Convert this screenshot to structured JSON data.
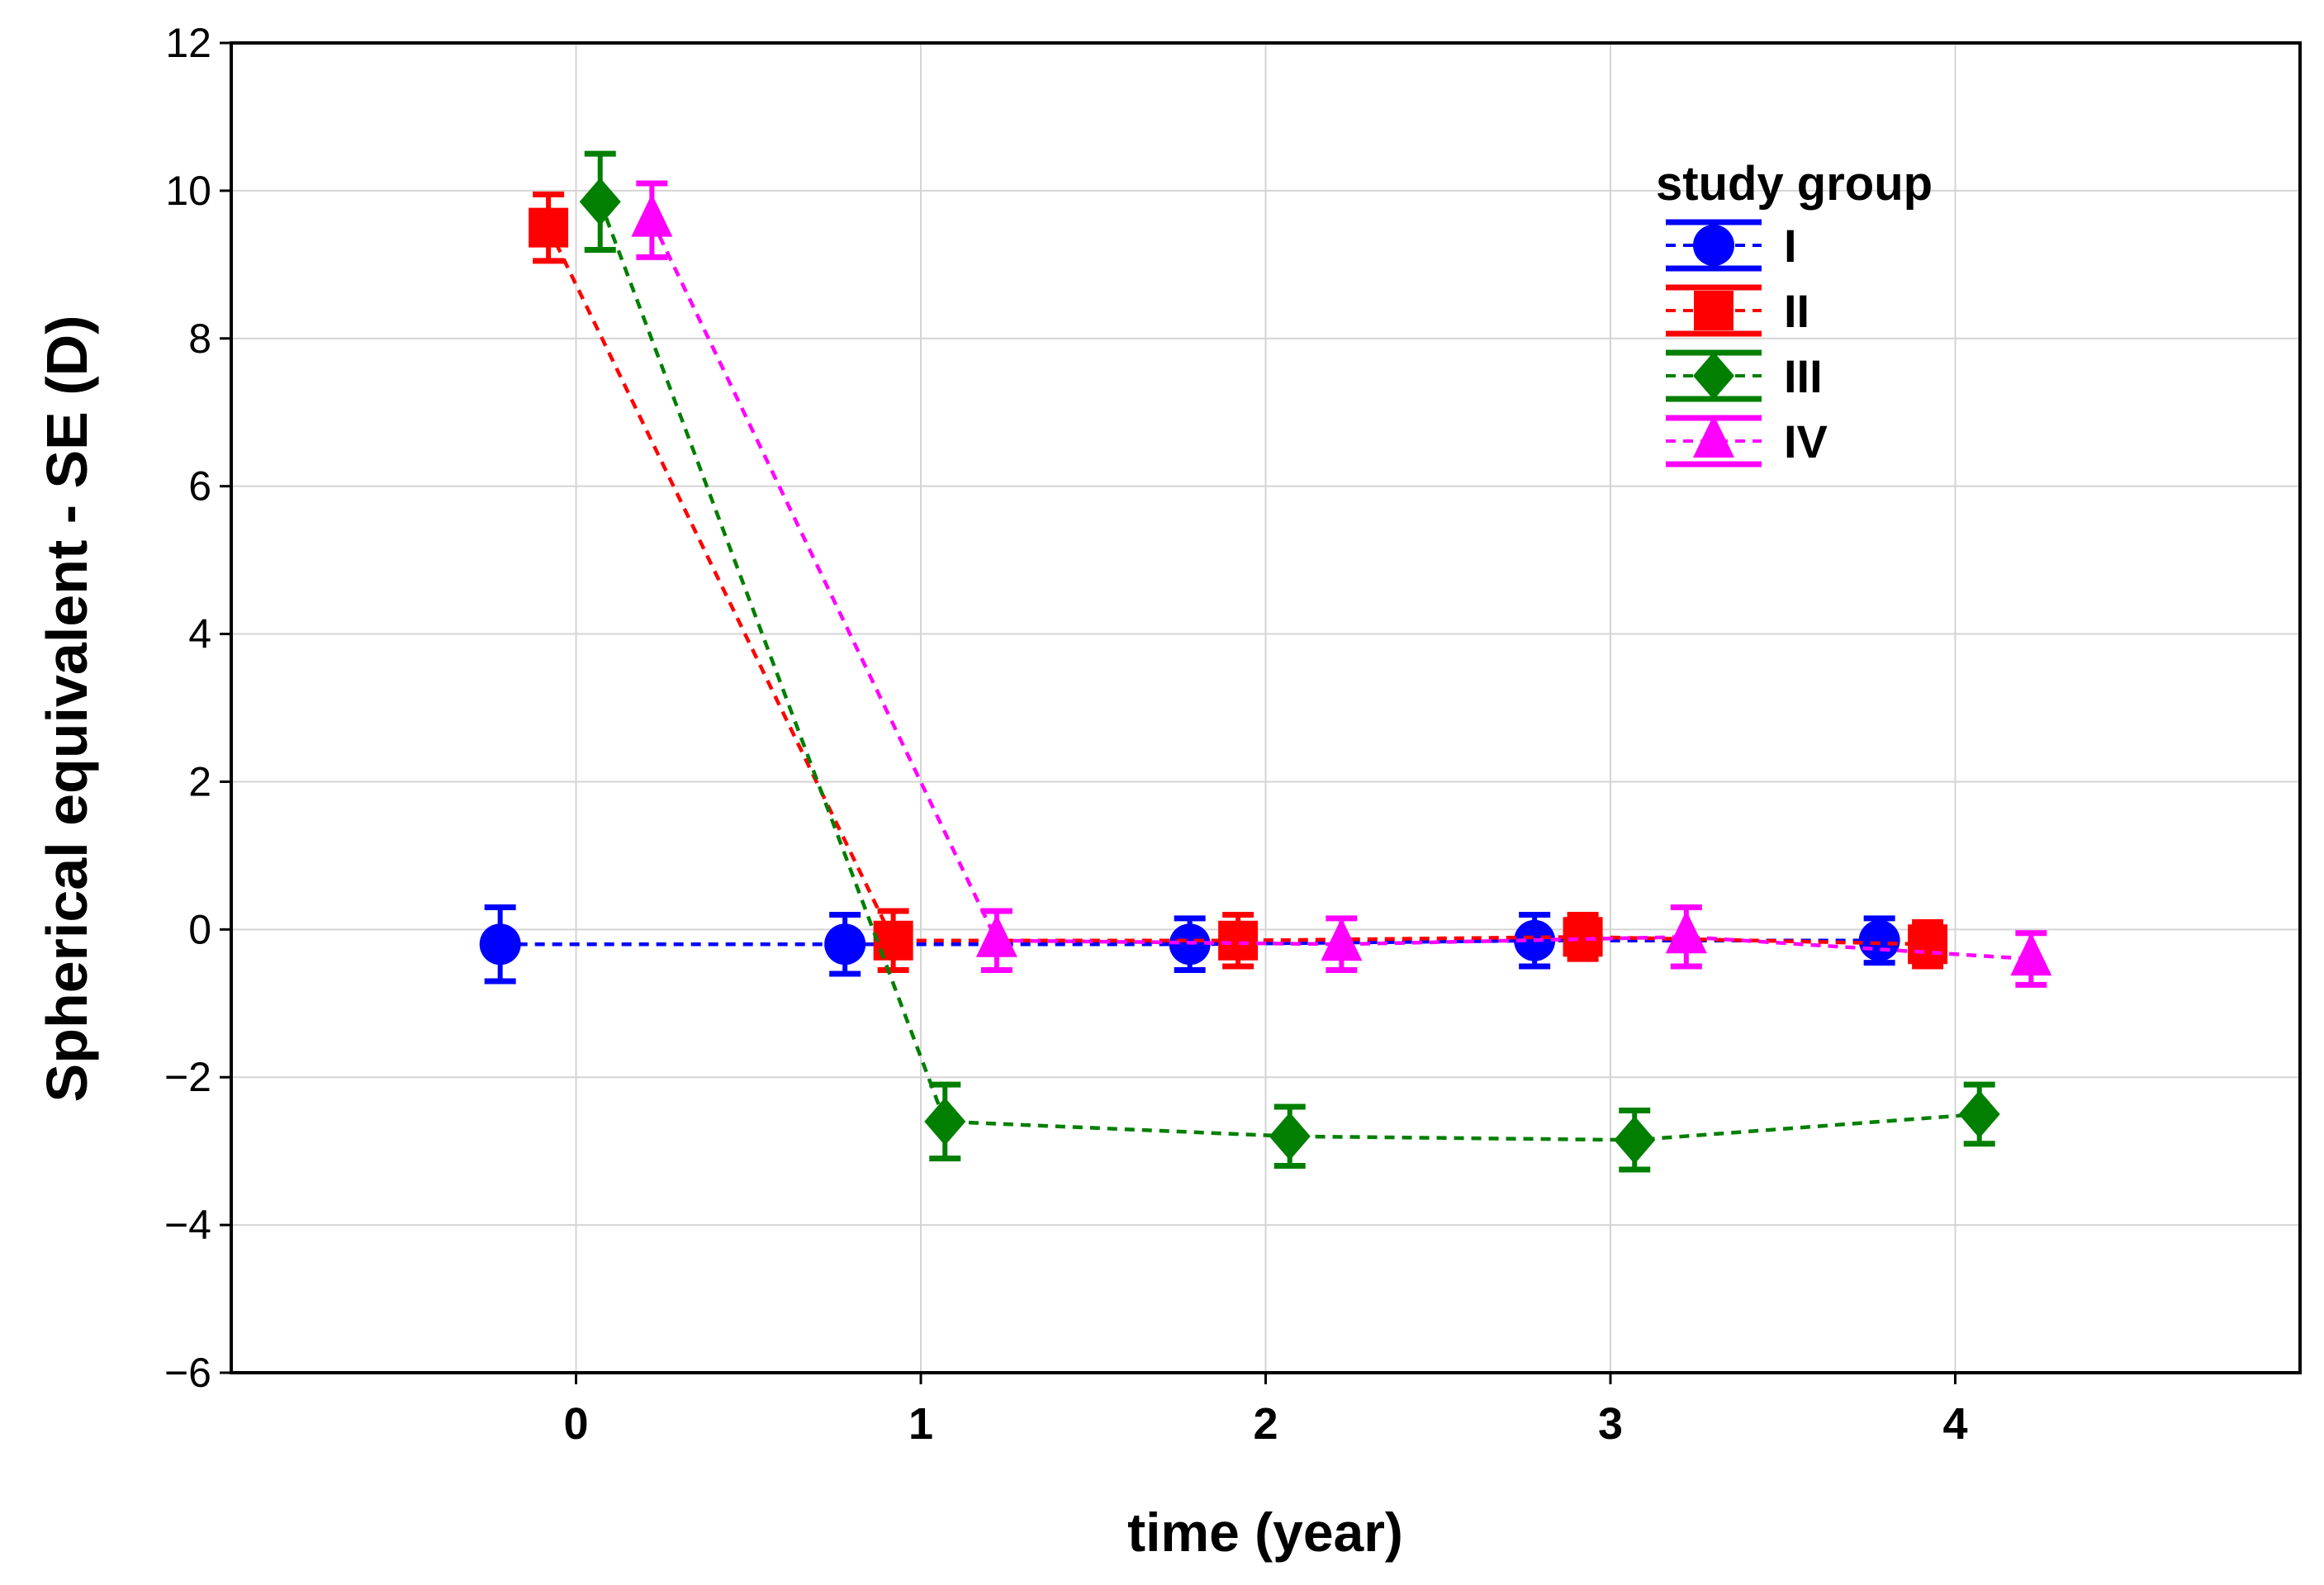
{
  "chart_data": {
    "type": "line",
    "title": "",
    "xlabel": "time (year)",
    "ylabel": "Spherical equivalent - SE (D)",
    "xlim": [
      -1,
      5
    ],
    "ylim": [
      -6,
      12
    ],
    "x_ticks": [
      0,
      1,
      2,
      3,
      4
    ],
    "x_tick_labels": [
      "0",
      "1",
      "2",
      "3",
      "4"
    ],
    "y_ticks": [
      -6,
      -4,
      -2,
      0,
      2,
      4,
      6,
      8,
      10,
      12
    ],
    "y_tick_labels": [
      "−6",
      "−4",
      "−2",
      "0",
      "2",
      "4",
      "6",
      "8",
      "10",
      "12"
    ],
    "grid": true,
    "error_bars": true,
    "line_style": "dashed",
    "legend": {
      "title": "study group",
      "position": "top-right"
    },
    "x": [
      0,
      1,
      2,
      3,
      4
    ],
    "series": [
      {
        "name": "I",
        "color": "#0000ff",
        "marker": "circle",
        "x_offset": -0.22,
        "values": [
          -0.2,
          -0.2,
          -0.2,
          -0.15,
          -0.15
        ],
        "err": [
          0.5,
          0.4,
          0.35,
          0.35,
          0.3
        ]
      },
      {
        "name": "II",
        "color": "#ff0000",
        "marker": "square",
        "x_offset": -0.08,
        "values": [
          9.5,
          -0.15,
          -0.15,
          -0.1,
          -0.2
        ],
        "err": [
          0.45,
          0.4,
          0.35,
          0.3,
          0.3
        ]
      },
      {
        "name": "III",
        "color": "#007f00",
        "marker": "diamond",
        "x_offset": 0.07,
        "values": [
          9.85,
          -2.6,
          -2.8,
          -2.85,
          -2.5
        ],
        "err": [
          0.65,
          0.5,
          0.4,
          0.4,
          0.4
        ]
      },
      {
        "name": "IV",
        "color": "#ff00ff",
        "marker": "triangle",
        "x_offset": 0.22,
        "values": [
          9.6,
          -0.15,
          -0.2,
          -0.1,
          -0.4
        ],
        "err": [
          0.5,
          0.4,
          0.35,
          0.4,
          0.35
        ]
      }
    ]
  }
}
